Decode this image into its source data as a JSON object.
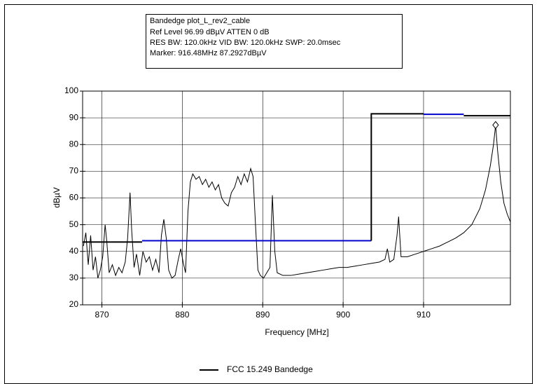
{
  "chart_data": {
    "type": "line",
    "info": [
      "Bandedge plot_L_rev2_cable",
      "Ref Level 96.99 dBµV    ATTEN 0 dB",
      "RES BW: 120.0kHz  VID BW: 120.0kHz  SWP: 20.0msec",
      "Marker: 916.48MHz  87.2927dBµV"
    ],
    "xlabel": "Frequency [MHz]",
    "ylabel": "dBµV",
    "xlim": [
      867.6,
      920.8
    ],
    "ylim": [
      20,
      100
    ],
    "xticks": [
      870,
      880,
      890,
      900,
      910
    ],
    "yticks": [
      20,
      30,
      40,
      50,
      60,
      70,
      80,
      90,
      100
    ],
    "grid": true,
    "series": [
      {
        "color": "#000000",
        "x": [
          867.7,
          868,
          868.3,
          868.6,
          868.9,
          869.2,
          869.5,
          869.8,
          870.1,
          870.4,
          870.6,
          870.9,
          871.3,
          871.7,
          872.1,
          872.5,
          872.9,
          873.2,
          873.5,
          873.7,
          874,
          874.3,
          874.7,
          875.1,
          875.5,
          875.9,
          876.3,
          876.7,
          877.1,
          877.4,
          877.7,
          878,
          878.3,
          878.7,
          879.1,
          879.5,
          879.8,
          880.1,
          880.4,
          880.7,
          881,
          881.3,
          881.7,
          882.1,
          882.5,
          882.9,
          883.3,
          883.7,
          884.1,
          884.5,
          884.9,
          885.3,
          885.7,
          886.1,
          886.5,
          886.9,
          887.3,
          887.7,
          888.1,
          888.5,
          888.8,
          889.1,
          889.4,
          889.7,
          890.1,
          890.5,
          890.9,
          891.2,
          891.5,
          891.8,
          892.5,
          893.5,
          894.5,
          895.5,
          896.5,
          897.5,
          898.5,
          899.5,
          900.5,
          901.5,
          902.5,
          903.5,
          904.5,
          905.2,
          905.5,
          905.8,
          906.3,
          906.7,
          906.9,
          907.2,
          908,
          909,
          910,
          911,
          912,
          913,
          914,
          915,
          916,
          917,
          917.7,
          918.3,
          918.7,
          918.96,
          919.2,
          919.6,
          920,
          920.4,
          920.8
        ],
        "values": [
          42,
          47,
          35,
          46,
          33,
          38,
          30,
          33,
          38,
          50,
          44,
          32,
          35,
          31,
          34,
          32,
          36,
          45,
          62,
          48,
          34,
          39,
          31,
          40,
          36,
          38,
          33,
          37,
          32,
          46,
          52,
          45,
          33,
          30,
          31,
          37,
          41,
          36,
          32,
          55,
          66,
          69,
          67,
          68,
          65,
          67,
          64,
          66,
          63,
          65,
          60,
          58,
          57,
          62,
          64,
          68,
          65,
          69,
          66,
          71,
          68,
          50,
          33,
          31,
          30,
          32,
          34,
          61,
          40,
          32,
          31,
          31,
          31.5,
          32,
          32.5,
          33,
          33.5,
          34,
          34,
          34.5,
          35,
          35.5,
          36,
          37,
          41,
          36,
          37,
          46,
          53,
          38,
          38,
          39,
          40,
          41,
          42,
          43.5,
          45,
          47,
          50,
          56,
          63,
          72,
          80,
          87.3,
          78,
          66,
          58,
          54,
          51
        ]
      },
      {
        "name": "FCC 15.249 Bandedge",
        "color": "#000000",
        "x": [
          867.6,
          875,
          880,
          903.5,
          903.5,
          910,
          912,
          915,
          920.8
        ],
        "values": [
          43.5,
          43.5,
          null,
          44,
          91.5,
          91.5,
          null,
          90.8,
          90.8
        ]
      },
      {
        "color": "#0000cc",
        "x": [
          875,
          903.5,
          905,
          910,
          915
        ],
        "values": [
          44,
          44,
          null,
          91.3,
          91.3
        ]
      }
    ],
    "marker": {
      "x": 918.96,
      "y": 87.3
    }
  }
}
